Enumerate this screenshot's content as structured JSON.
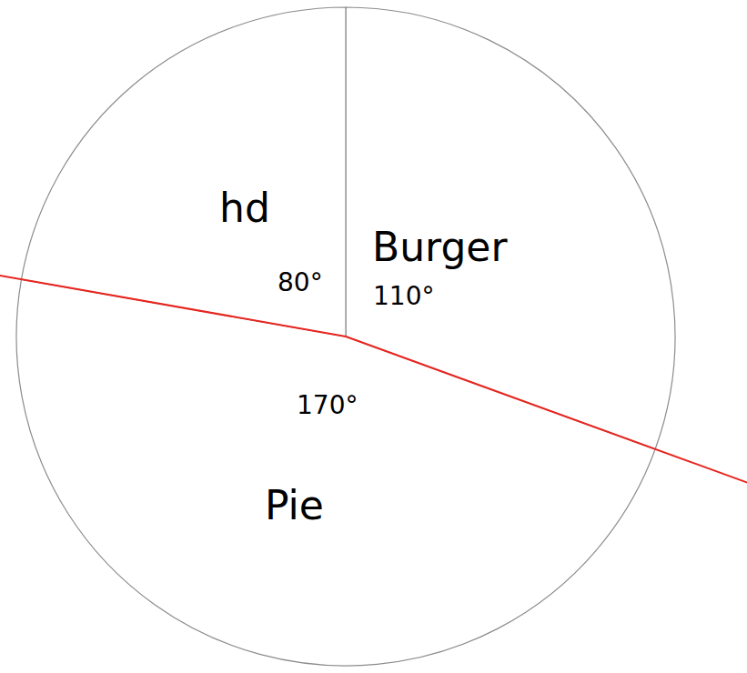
{
  "chart_data": {
    "type": "pie",
    "categories": [
      "Burger",
      "Pie",
      "hd"
    ],
    "values": [
      110,
      170,
      80
    ],
    "value_labels": [
      "110°",
      "170°",
      "80°"
    ],
    "colors": [
      "#ffffff",
      "#ffffff",
      "#ffffff"
    ],
    "data_labels": true
  }
}
